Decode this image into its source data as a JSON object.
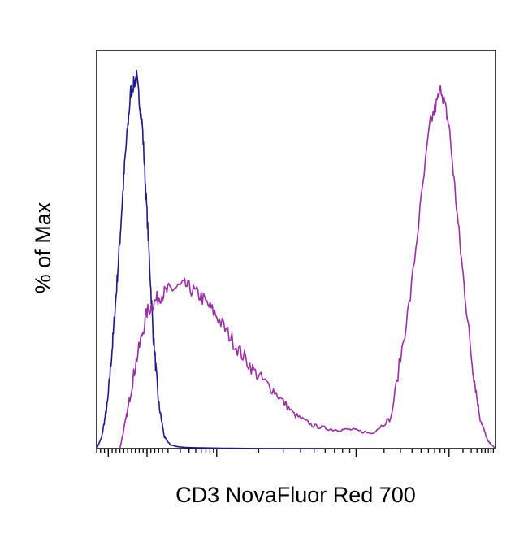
{
  "chart_data": {
    "type": "line",
    "title": "",
    "xlabel": "CD3 NovaFluor Red 700",
    "ylabel": "% of Max",
    "x_scale": "log",
    "xlim": [
      -3.0,
      100.0
    ],
    "ylim": [
      0,
      100
    ],
    "x_tick_labels": [],
    "y_tick_labels": [],
    "grid": false,
    "legend": "none",
    "series": [
      {
        "color": "#1f1a8a",
        "x": [
          -3.0,
          -1.7,
          -0.2,
          1.3,
          2.8,
          4.3,
          5.8,
          7.3,
          8.8,
          10.2,
          11.6,
          13.0,
          14.5,
          16.0,
          18.0,
          20.0,
          24.0,
          30.0,
          40.0,
          55.0
        ],
        "y": [
          0,
          3,
          12,
          30,
          52,
          76,
          94,
          98,
          85,
          58,
          30,
          12,
          3,
          1,
          0.5,
          0.3,
          0.2,
          0.1,
          0,
          0
        ]
      },
      {
        "color": "#9a2fa4",
        "x": [
          3.0,
          5.0,
          7.0,
          10.0,
          13.0,
          16.0,
          20.0,
          24.0,
          28.0,
          33.0,
          38.0,
          43.0,
          48.0,
          53.0,
          58.0,
          63.0,
          68.0,
          73.0,
          78.0,
          83.0,
          86.0,
          88.0,
          91.0,
          94.0,
          96.0,
          98.0,
          100.0
        ],
        "y": [
          0,
          10,
          22,
          36,
          40,
          42,
          43,
          40,
          35,
          27,
          20,
          15,
          9,
          6,
          5,
          5,
          4,
          8,
          40,
          85,
          95,
          85,
          52,
          22,
          8,
          2,
          0
        ]
      }
    ]
  }
}
